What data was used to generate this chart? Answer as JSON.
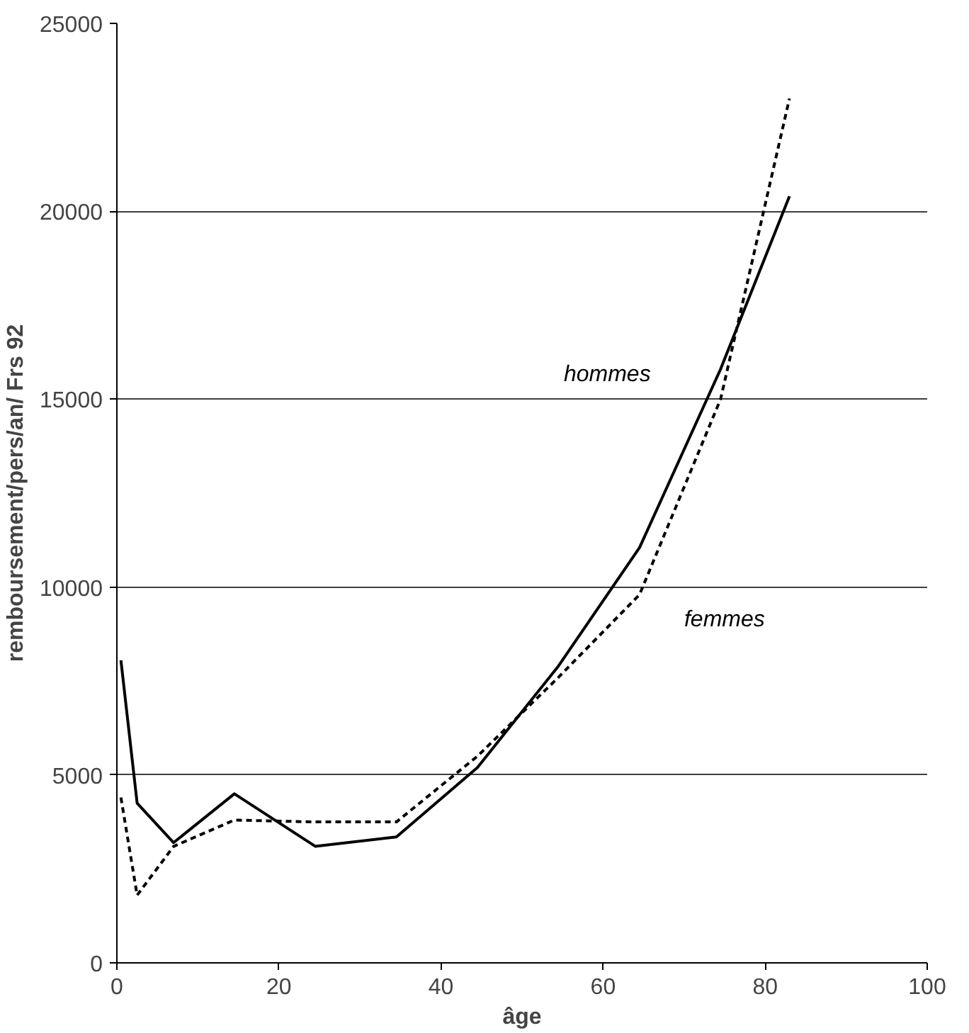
{
  "chart_data": {
    "type": "line",
    "xlabel": "âge",
    "ylabel": "remboursement/pers/an/ Frs 92",
    "xlim": [
      0,
      100
    ],
    "xticks": [
      0,
      20,
      40,
      60,
      80,
      100
    ],
    "ylim": [
      0,
      25000
    ],
    "yticks": [
      0,
      5000,
      10000,
      15000,
      20000,
      25000
    ],
    "grid": "y",
    "marker": "none",
    "series": [
      {
        "name": "hommes",
        "color": "#000000",
        "line_style": "solid",
        "x": [
          0.5,
          2.5,
          7,
          14.5,
          24.5,
          34.5,
          44.5,
          54.5,
          64.5,
          74.5,
          83
        ],
        "values": [
          8050,
          4250,
          3200,
          4500,
          3100,
          3350,
          5200,
          7900,
          11050,
          15800,
          20400
        ]
      },
      {
        "name": "femmes",
        "color": "#000000",
        "line_style": "dashed",
        "x": [
          0.5,
          2.5,
          7,
          14.5,
          24.5,
          34.5,
          44.5,
          54.5,
          64.5,
          74.5,
          83
        ],
        "values": [
          4400,
          1800,
          3100,
          3800,
          3750,
          3750,
          5500,
          7600,
          9800,
          15000,
          23000
        ]
      }
    ]
  }
}
